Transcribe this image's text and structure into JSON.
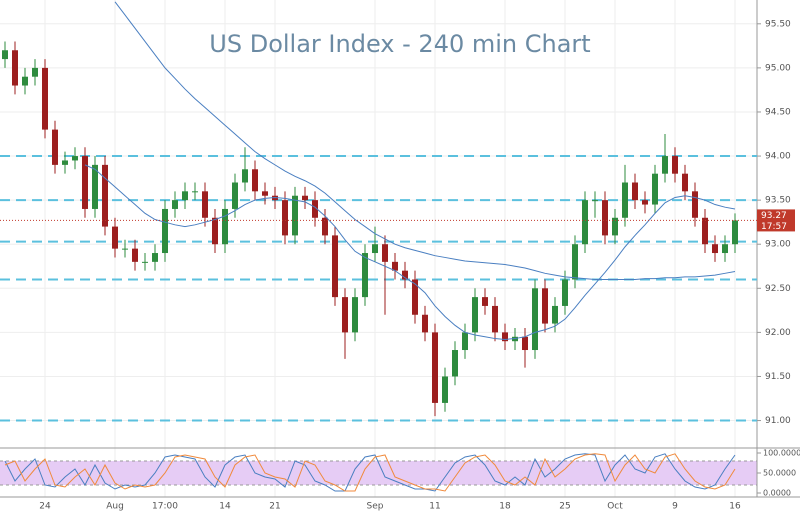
{
  "chart_data": {
    "type": "candlestick",
    "title": "US Dollar Index - 240 min Chart",
    "categories": [
      null,
      null,
      null,
      null,
      "24",
      null,
      null,
      null,
      null,
      null,
      null,
      "Aug",
      null,
      null,
      null,
      null,
      "17:00",
      null,
      null,
      null,
      null,
      null,
      "14",
      null,
      null,
      null,
      null,
      "21",
      null,
      null,
      null,
      null,
      null,
      null,
      null,
      null,
      null,
      "Sep",
      null,
      null,
      null,
      null,
      null,
      "11",
      null,
      null,
      null,
      null,
      null,
      null,
      "18",
      null,
      null,
      null,
      null,
      null,
      "25",
      null,
      null,
      null,
      null,
      "Oct",
      null,
      null,
      null,
      null,
      null,
      "9",
      null,
      null,
      null,
      null,
      null,
      "16"
    ],
    "open": [
      95.1,
      95.2,
      94.8,
      94.9,
      95.0,
      94.3,
      93.9,
      93.95,
      94.0,
      93.4,
      93.9,
      93.2,
      92.95,
      92.95,
      92.8,
      92.8,
      92.9,
      93.4,
      93.5,
      93.6,
      93.6,
      93.3,
      93.0,
      93.4,
      93.7,
      93.85,
      93.6,
      93.55,
      93.5,
      93.1,
      93.55,
      93.5,
      93.3,
      93.1,
      92.4,
      92.0,
      92.4,
      92.9,
      93.0,
      92.8,
      92.7,
      92.6,
      92.2,
      92.0,
      91.2,
      91.5,
      91.8,
      92.0,
      92.4,
      92.3,
      92.0,
      91.9,
      91.95,
      91.8,
      92.5,
      92.1,
      92.3,
      92.6,
      93.0,
      93.5,
      93.5,
      93.1,
      93.3,
      93.7,
      93.5,
      93.45,
      93.8,
      94.0,
      93.8,
      93.6,
      93.3,
      93.0,
      92.9,
      93.0
    ],
    "high": [
      95.3,
      95.3,
      95.0,
      95.1,
      95.1,
      94.4,
      94.05,
      94.1,
      94.1,
      94.0,
      94.0,
      93.3,
      93.05,
      93.05,
      92.9,
      93.0,
      93.5,
      93.6,
      93.7,
      93.7,
      93.7,
      93.4,
      93.5,
      93.8,
      94.1,
      93.95,
      93.7,
      93.65,
      93.6,
      93.65,
      93.65,
      93.6,
      93.4,
      93.2,
      92.5,
      92.5,
      93.0,
      93.2,
      93.1,
      92.9,
      92.8,
      92.7,
      92.3,
      92.1,
      91.6,
      91.9,
      92.1,
      92.5,
      92.5,
      92.4,
      92.1,
      92.05,
      92.05,
      92.6,
      92.6,
      92.4,
      92.7,
      93.1,
      93.6,
      93.6,
      93.6,
      93.4,
      93.9,
      93.8,
      93.6,
      93.9,
      94.25,
      94.1,
      93.9,
      93.7,
      93.4,
      93.1,
      93.1,
      93.35
    ],
    "low": [
      95.0,
      94.7,
      94.7,
      94.8,
      94.2,
      93.8,
      93.8,
      93.85,
      93.3,
      93.3,
      93.1,
      92.85,
      92.85,
      92.7,
      92.7,
      92.7,
      92.8,
      93.3,
      93.4,
      93.5,
      93.2,
      92.9,
      92.9,
      93.3,
      93.6,
      93.5,
      93.45,
      93.4,
      93.0,
      93.0,
      93.4,
      93.2,
      93.0,
      92.3,
      91.7,
      91.9,
      92.3,
      92.8,
      92.2,
      92.6,
      92.5,
      92.1,
      91.9,
      91.05,
      91.1,
      91.4,
      91.7,
      91.9,
      92.2,
      91.9,
      91.8,
      91.8,
      91.6,
      91.7,
      92.0,
      92.0,
      92.2,
      92.5,
      92.9,
      93.3,
      93.0,
      93.0,
      93.2,
      93.4,
      93.35,
      93.35,
      93.7,
      93.7,
      93.5,
      93.2,
      92.9,
      92.8,
      92.8,
      92.9
    ],
    "close": [
      95.2,
      94.8,
      94.9,
      95.0,
      94.3,
      93.9,
      93.95,
      94.0,
      93.4,
      93.9,
      93.2,
      92.95,
      92.95,
      92.8,
      92.8,
      92.9,
      93.4,
      93.5,
      93.6,
      93.6,
      93.3,
      93.0,
      93.4,
      93.7,
      93.85,
      93.6,
      93.55,
      93.5,
      93.1,
      93.55,
      93.5,
      93.3,
      93.1,
      92.4,
      92.0,
      92.4,
      92.9,
      93.0,
      92.8,
      92.7,
      92.6,
      92.2,
      92.0,
      91.2,
      91.5,
      91.8,
      92.0,
      92.4,
      92.3,
      92.0,
      91.9,
      91.95,
      91.8,
      92.5,
      92.1,
      92.3,
      92.6,
      93.0,
      93.5,
      93.5,
      93.1,
      93.3,
      93.7,
      93.5,
      93.45,
      93.8,
      94.0,
      93.8,
      93.6,
      93.3,
      93.0,
      92.9,
      93.0,
      93.27
    ],
    "up_color": "#2e8b3e",
    "down_color": "#9c1f1f",
    "series": [
      {
        "color": "#4a7fc1",
        "values": [
          null,
          null,
          null,
          null,
          null,
          null,
          null,
          null,
          93.9,
          93.85,
          93.75,
          93.65,
          93.55,
          93.45,
          93.35,
          93.28,
          93.25,
          93.22,
          93.2,
          93.22,
          93.25,
          93.28,
          93.32,
          93.38,
          93.45,
          93.5,
          93.52,
          93.53,
          93.52,
          93.5,
          93.48,
          93.42,
          93.32,
          93.2,
          93.05,
          92.92,
          92.85,
          92.8,
          92.75,
          92.7,
          92.62,
          92.55,
          92.45,
          92.3,
          92.18,
          92.08,
          92.0,
          91.97,
          91.95,
          91.93,
          91.92,
          91.93,
          91.95,
          92.0,
          92.03,
          92.07,
          92.15,
          92.28,
          92.42,
          92.55,
          92.68,
          92.82,
          92.97,
          93.1,
          93.22,
          93.35,
          93.47,
          93.53,
          93.55,
          93.53,
          93.5,
          93.45,
          93.42,
          93.4
        ]
      },
      {
        "color": "#4a7fc1",
        "values": [
          null,
          null,
          null,
          null,
          null,
          null,
          null,
          null,
          null,
          null,
          null,
          95.75,
          95.6,
          95.45,
          95.3,
          95.15,
          95.0,
          94.88,
          94.76,
          94.65,
          94.55,
          94.45,
          94.35,
          94.25,
          94.15,
          94.05,
          93.97,
          93.9,
          93.83,
          93.77,
          93.72,
          93.66,
          93.58,
          93.48,
          93.38,
          93.28,
          93.2,
          93.12,
          93.06,
          93.0,
          92.96,
          92.93,
          92.9,
          92.87,
          92.85,
          92.83,
          92.81,
          92.8,
          92.79,
          92.78,
          92.77,
          92.75,
          92.73,
          92.7,
          92.67,
          92.65,
          92.63,
          92.62,
          92.61,
          92.6,
          92.6,
          92.6,
          92.6,
          92.6,
          92.61,
          92.61,
          92.62,
          92.62,
          92.63,
          92.63,
          92.64,
          92.65,
          92.67,
          92.69
        ]
      }
    ],
    "levels": [
      94.0,
      93.5,
      93.03,
      92.6,
      91.0
    ],
    "level_color": "#5bc0de",
    "last_price": {
      "value": 93.27,
      "label": "93.27"
    },
    "countdown": "17:57",
    "ylim": [
      90.7,
      95.77
    ],
    "yticks": [
      {
        "value": 91.0,
        "label": "91.00"
      },
      {
        "value": 91.5,
        "label": "91.50"
      },
      {
        "value": 92.0,
        "label": "92.00"
      },
      {
        "value": 92.5,
        "label": "92.50"
      },
      {
        "value": 93.0,
        "label": "93.00"
      },
      {
        "value": 93.5,
        "label": "93.50"
      },
      {
        "value": 94.0,
        "label": "94.00"
      },
      {
        "value": 94.5,
        "label": "94.50"
      },
      {
        "value": 95.0,
        "label": "95.00"
      },
      {
        "value": 95.5,
        "label": "95.50"
      }
    ],
    "grid": true,
    "stoch": {
      "ylim": [
        -10,
        110
      ],
      "band": [
        20,
        80
      ],
      "yticks": [
        {
          "value": 0,
          "label": "0.0000"
        },
        {
          "value": 50,
          "label": "50.0000"
        },
        {
          "value": 100,
          "label": "100.0000"
        }
      ],
      "series": [
        {
          "color": "#4a7fc1",
          "values": [
            80,
            30,
            60,
            85,
            20,
            15,
            40,
            60,
            20,
            70,
            25,
            10,
            20,
            15,
            20,
            50,
            90,
            95,
            90,
            85,
            40,
            15,
            70,
            90,
            95,
            50,
            40,
            35,
            15,
            80,
            70,
            30,
            20,
            5,
            5,
            60,
            90,
            95,
            40,
            30,
            20,
            10,
            10,
            5,
            40,
            75,
            90,
            95,
            70,
            30,
            20,
            40,
            20,
            85,
            40,
            60,
            85,
            95,
            98,
            95,
            30,
            70,
            95,
            60,
            50,
            90,
            98,
            60,
            30,
            15,
            10,
            20,
            60,
            95
          ]
        },
        {
          "color": "#f08a3c",
          "values": [
            70,
            80,
            30,
            60,
            85,
            20,
            15,
            40,
            60,
            20,
            70,
            25,
            10,
            20,
            15,
            20,
            50,
            90,
            95,
            90,
            85,
            40,
            15,
            70,
            90,
            95,
            50,
            40,
            35,
            15,
            80,
            70,
            30,
            20,
            5,
            5,
            60,
            90,
            95,
            40,
            30,
            20,
            10,
            10,
            5,
            40,
            75,
            90,
            95,
            70,
            30,
            20,
            40,
            20,
            85,
            40,
            60,
            85,
            95,
            98,
            95,
            30,
            70,
            95,
            60,
            50,
            90,
            98,
            60,
            30,
            15,
            10,
            20,
            60
          ]
        }
      ]
    }
  }
}
